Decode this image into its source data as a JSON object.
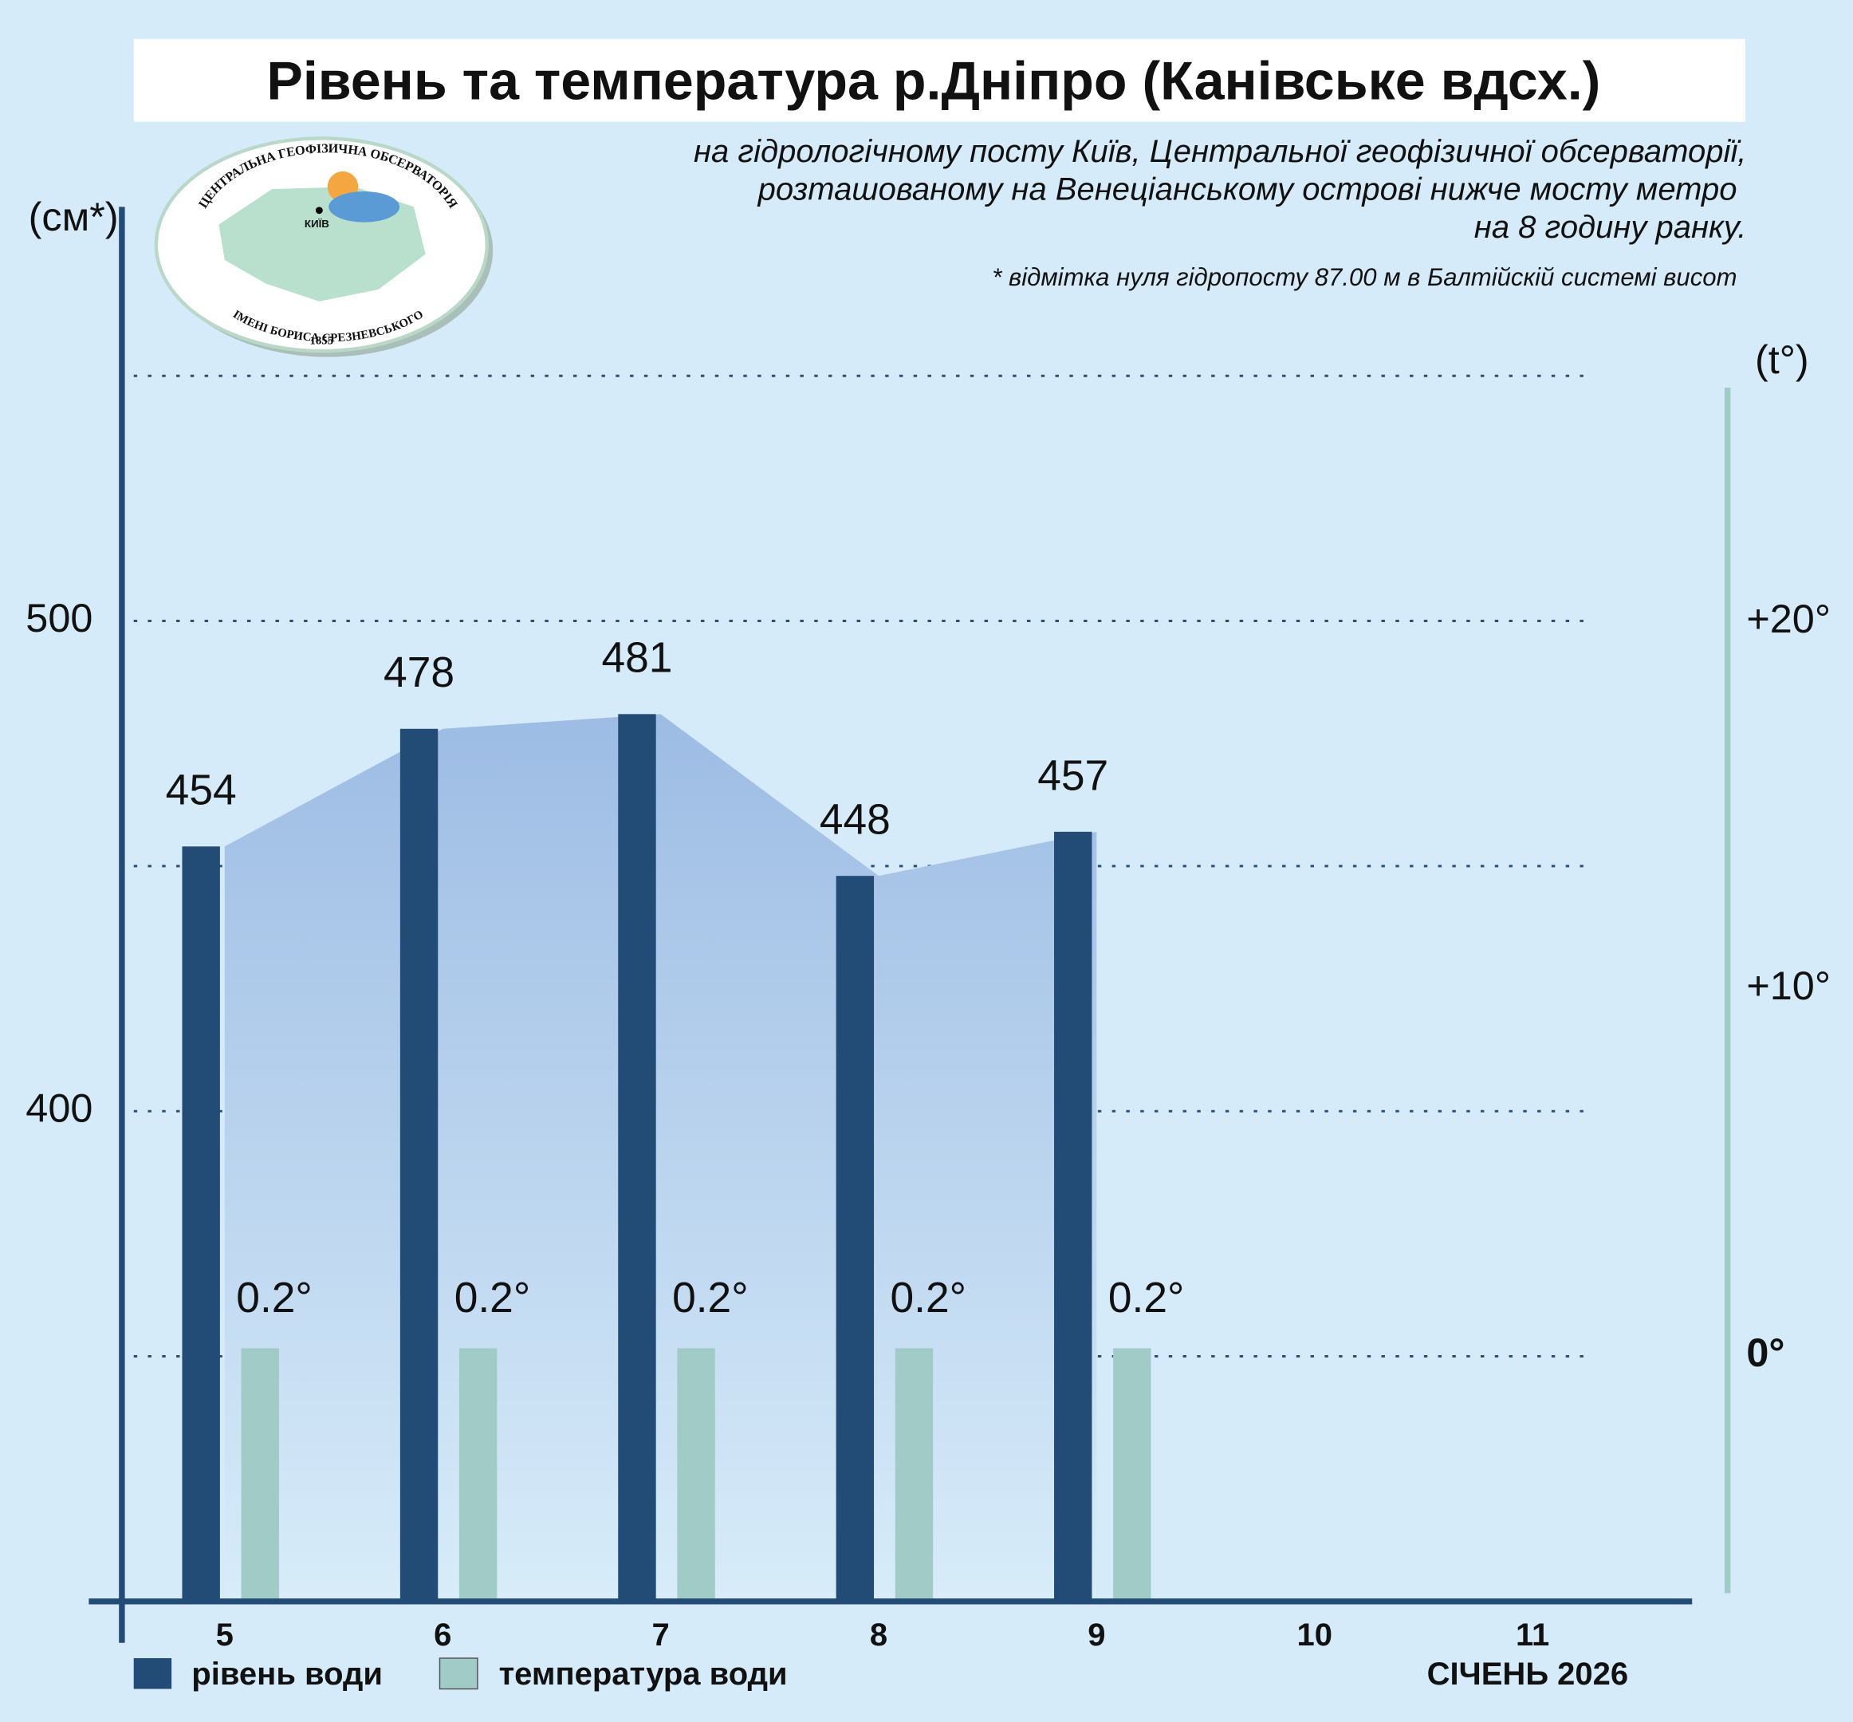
{
  "chart_data": {
    "type": "bar",
    "title": "Рівень та температура р.Дніпро (Канівське вдсх.)",
    "subtitle": [
      "на гідрологічному посту Київ, Центральної геофізичної обсерваторії,",
      "розташованому на Венеціанському острові нижче мосту метро",
      "на 8 годину ранку."
    ],
    "note": "* відмітка нуля гідропосту 87.00 м в Балтійскій системі висот",
    "logo": {
      "top": "ЦЕНТРАЛЬНА ГЕОФІЗИЧНА ОБСЕРВАТОРІЯ",
      "bottom": "ІМЕНІ БОРИСА СРЕЗНЕВСЬКОГО",
      "year": "1855",
      "city": "КИЇВ"
    },
    "y_label": "(см*)",
    "y2_label": "(t°)",
    "x_label": "СІЧЕНЬ 2026",
    "categories": [
      "5",
      "6",
      "7",
      "8",
      "9",
      "10",
      "11"
    ],
    "series": [
      {
        "name": "рівень води",
        "color": "#224b76",
        "values": [
          454,
          478,
          481,
          448,
          457,
          null,
          null
        ]
      },
      {
        "name": "температура води",
        "color": "#a1cbc7",
        "axis": "y2",
        "values": [
          0.2,
          0.2,
          0.2,
          0.2,
          0.2,
          null,
          null
        ],
        "value_labels": [
          "0.2°",
          "0.2°",
          "0.2°",
          "0.2°",
          "0.2°",
          null,
          null
        ]
      }
    ],
    "area_color": "#9dbce4",
    "ylim": [
      300,
      550
    ],
    "yticks": [
      400,
      500
    ],
    "minor_yticks": [
      350,
      450,
      550
    ],
    "grid": true,
    "y2lim": [
      -6.7,
      26.7
    ],
    "y2ticks": [
      {
        "value": 0,
        "label": "0°"
      },
      {
        "value": 10,
        "label": "+10°"
      },
      {
        "value": 20,
        "label": "+20°"
      }
    ]
  }
}
